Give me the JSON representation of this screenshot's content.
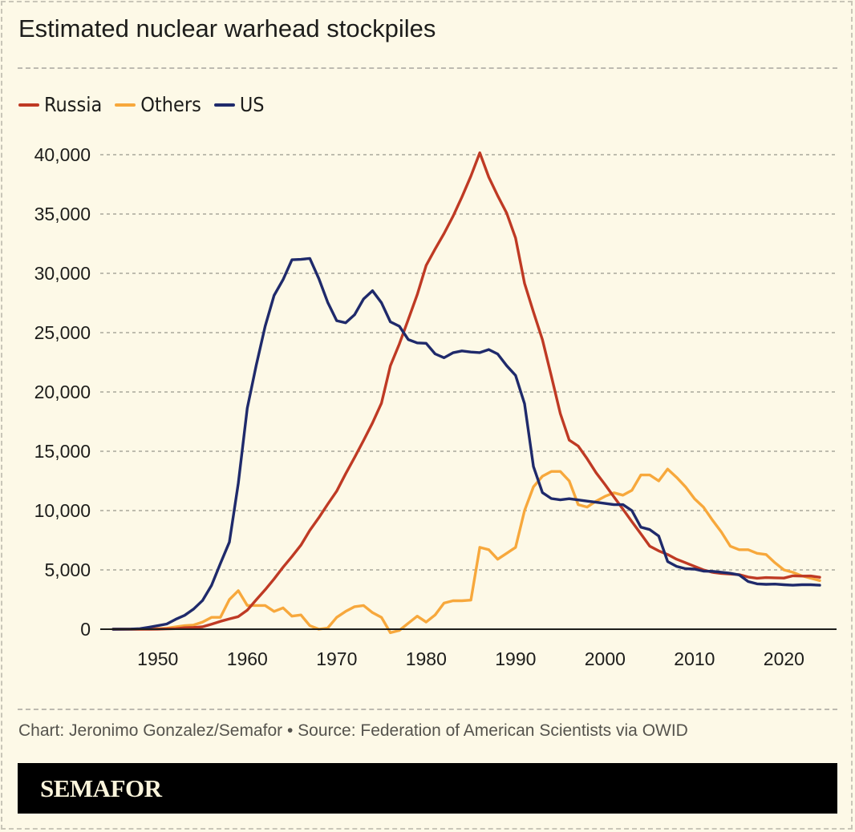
{
  "title": "Estimated nuclear warhead stockpiles",
  "caption": "Chart: Jeronimo Gonzalez/Semafor • Source: Federation of American Scientists via OWID",
  "brand": "SEMAFOR",
  "chart_data": {
    "type": "line",
    "title": "Estimated nuclear warhead stockpiles",
    "xlabel": "",
    "ylabel": "",
    "xlim": [
      1945,
      2024
    ],
    "ylim": [
      0,
      40000
    ],
    "grid": true,
    "legend_placement": "top-left",
    "x_ticks": [
      1950,
      1960,
      1970,
      1980,
      1990,
      2000,
      2010,
      2020
    ],
    "y_ticks": [
      0,
      5000,
      10000,
      15000,
      20000,
      25000,
      30000,
      35000,
      40000
    ],
    "y_tick_labels": [
      "0",
      "5,000",
      "10,000",
      "15,000",
      "20,000",
      "25,000",
      "30,000",
      "35,000",
      "40,000"
    ],
    "x_start": 1945,
    "series": [
      {
        "name": "Russia",
        "color": "#bf3a24",
        "values": [
          0,
          0,
          0,
          0,
          1,
          5,
          25,
          50,
          120,
          150,
          200,
          426,
          660,
          869,
          1060,
          1605,
          2471,
          3322,
          4238,
          5221,
          6129,
          7089,
          8339,
          9399,
          10538,
          11643,
          13092,
          14478,
          15915,
          17385,
          19055,
          22205,
          24044,
          26100,
          28200,
          30662,
          32049,
          33352,
          34804,
          36431,
          38197,
          40159,
          38107,
          36538,
          35078,
          32980,
          29154,
          26734,
          24403,
          21339,
          18179,
          15942,
          15442,
          14368,
          13189,
          12188,
          11152,
          10114,
          9076,
          8038,
          7000,
          6600,
          6300,
          5900,
          5600,
          5300,
          5000,
          4800,
          4700,
          4650,
          4600,
          4400,
          4300,
          4350,
          4330,
          4310,
          4500,
          4477,
          4489,
          4380
        ]
      },
      {
        "name": "Others",
        "color": "#f7a83c",
        "values": [
          0,
          0,
          0,
          10,
          20,
          50,
          80,
          200,
          300,
          350,
          600,
          1000,
          1000,
          2500,
          3250,
          2000,
          2000,
          2000,
          1500,
          1800,
          1100,
          1200,
          300,
          0,
          100,
          1000,
          1500,
          1900,
          2000,
          1400,
          1000,
          -300,
          -100,
          500,
          1100,
          600,
          1200,
          2200,
          2400,
          2400,
          2450,
          6900,
          6700,
          5900,
          6400,
          6900,
          10000,
          12000,
          12900,
          13300,
          13300,
          12500,
          10500,
          10300,
          10800,
          11200,
          11500,
          11300,
          11700,
          13000,
          13000,
          12500,
          13500,
          12800,
          12000,
          11000,
          10300,
          9200,
          8200,
          7000,
          6700,
          6700,
          6400,
          6300,
          5600,
          5000,
          4800,
          4500,
          4300,
          4100
        ]
      },
      {
        "name": "US",
        "color": "#1f2a6b",
        "values": [
          2,
          9,
          13,
          50,
          170,
          299,
          438,
          841,
          1169,
          1703,
          2422,
          3692,
          5543,
          7345,
          12298,
          18638,
          22229,
          25540,
          28133,
          29463,
          31139,
          31175,
          31255,
          29561,
          27552,
          26008,
          25830,
          26516,
          27835,
          28537,
          27519,
          25914,
          25542,
          24418,
          24138,
          24104,
          23208,
          22886,
          23305,
          23459,
          23368,
          23317,
          23575,
          23205,
          22217,
          21392,
          19008,
          13708,
          11511,
          11011,
          10903,
          11000,
          10900,
          10800,
          10700,
          10600,
          10500,
          10500,
          10000,
          8600,
          8400,
          7850,
          5700,
          5300,
          5100,
          5066,
          4900,
          4880,
          4804,
          4717,
          4571,
          4018,
          3822,
          3785,
          3805,
          3750,
          3708,
          3750,
          3748,
          3708
        ]
      }
    ]
  }
}
